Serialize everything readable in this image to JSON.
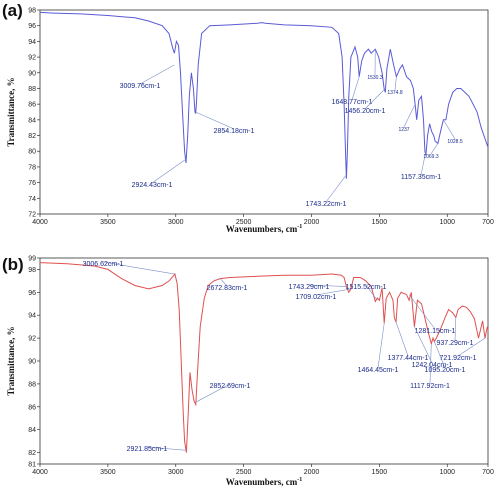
{
  "chart_data": [
    {
      "type": "line",
      "panel_label": "(a)",
      "xlabel": "Wavenumbers, cm",
      "xlabel_sup": "-1",
      "ylabel": "Transmittance, %",
      "xlim": [
        4000,
        700
      ],
      "ylim": [
        72,
        98
      ],
      "xticks": [
        4000,
        3500,
        3000,
        2500,
        2000,
        1500,
        1000,
        700
      ],
      "yticks": [
        72,
        74,
        76,
        78,
        80,
        82,
        84,
        86,
        88,
        90,
        92,
        94,
        96,
        98
      ],
      "color": "#5a5ad8",
      "series": [
        {
          "x": [
            4000,
            3900,
            3700,
            3500,
            3300,
            3200,
            3100,
            3050,
            3020,
            3009.76,
            2995,
            2980,
            2965,
            2950,
            2935,
            2924.43,
            2912,
            2900,
            2885,
            2870,
            2858,
            2854.18,
            2848,
            2835,
            2810,
            2750,
            2600,
            2400,
            2365,
            2340,
            2200,
            2000,
            1850,
            1800,
            1775,
            1760,
            1750,
            1743.22,
            1736,
            1725,
            1710,
            1680,
            1660,
            1648.77,
            1630,
            1610,
            1580,
            1560,
            1530.3,
            1505,
            1480,
            1465,
            1456.2,
            1445,
            1420,
            1395,
            1374.8,
            1350,
            1330,
            1300,
            1270,
            1250,
            1237,
            1225,
            1210,
            1190,
            1175,
            1165,
            1157.35,
            1145,
            1130,
            1115,
            1100,
            1090,
            1069.3,
            1050,
            1028.5,
            1010,
            990,
            960,
            930,
            900,
            870,
            840,
            810,
            780,
            750,
            720,
            700
          ],
          "y": [
            97.7,
            97.6,
            97.5,
            97.3,
            97.0,
            96.6,
            96.0,
            95.0,
            93.0,
            92.5,
            94.0,
            93.5,
            90.0,
            85.0,
            80.0,
            78.5,
            82.0,
            87.0,
            90.0,
            88.0,
            85.0,
            84.8,
            86.0,
            91.0,
            95.0,
            96.0,
            96.1,
            96.3,
            96.4,
            96.3,
            96.1,
            96.0,
            95.8,
            95.0,
            92.0,
            86.0,
            80.0,
            76.5,
            80.0,
            87.0,
            92.0,
            93.3,
            92.0,
            89.5,
            91.5,
            92.5,
            93.0,
            92.5,
            93.0,
            92.0,
            90.0,
            88.0,
            87.5,
            90.5,
            93.0,
            91.0,
            89.5,
            90.5,
            91.0,
            89.5,
            89.0,
            88.0,
            86.0,
            84.0,
            86.5,
            87.0,
            84.0,
            80.0,
            79.5,
            82.0,
            83.5,
            82.5,
            82.0,
            81.3,
            81.0,
            82.5,
            84.0,
            84.0,
            86.0,
            87.5,
            88.0,
            88.0,
            87.5,
            87.0,
            86.0,
            85.0,
            83.0,
            81.5,
            80.5
          ]
        }
      ],
      "annotations": [
        {
          "text": "3009.76cm-1",
          "size": "normal"
        },
        {
          "text": "2924.43cm-1",
          "size": "normal"
        },
        {
          "text": "2854.18cm-1",
          "size": "normal"
        },
        {
          "text": "1743.22cm-1",
          "size": "normal"
        },
        {
          "text": "1648.77cm-1",
          "size": "normal"
        },
        {
          "text": "1456.20cm-1",
          "size": "normal"
        },
        {
          "text": "1530.3",
          "size": "small"
        },
        {
          "text": "1374.8",
          "size": "small"
        },
        {
          "text": "1237",
          "size": "small"
        },
        {
          "text": "1157.35cm-1",
          "size": "normal"
        },
        {
          "text": "1069.3",
          "size": "small"
        },
        {
          "text": "1028.5",
          "size": "small"
        }
      ]
    },
    {
      "type": "line",
      "panel_label": "(b)",
      "xlabel": "Wavenumbers, cm",
      "xlabel_sup": "-1",
      "ylabel": "Transmittance, %",
      "xlim": [
        4000,
        700
      ],
      "ylim": [
        81,
        99
      ],
      "xticks": [
        4000,
        3500,
        3000,
        2500,
        2000,
        1500,
        1000,
        700
      ],
      "yticks": [
        81,
        82,
        84,
        86,
        88,
        90,
        92,
        94,
        96,
        98,
        99
      ],
      "color": "#e05050",
      "series": [
        {
          "x": [
            4000,
            3800,
            3600,
            3500,
            3400,
            3300,
            3200,
            3100,
            3050,
            3020,
            3006.62,
            2990,
            2975,
            2960,
            2945,
            2935,
            2921.85,
            2910,
            2895,
            2880,
            2865,
            2852.69,
            2840,
            2820,
            2790,
            2760,
            2720,
            2672.83,
            2600,
            2400,
            2200,
            2000,
            1850,
            1780,
            1760,
            1743.29,
            1725,
            1709.02,
            1690,
            1640,
            1600,
            1560,
            1530,
            1515.52,
            1500,
            1480,
            1464.45,
            1450,
            1425,
            1400,
            1390,
            1377.44,
            1365,
            1340,
            1300,
            1281.15,
            1265,
            1242.04,
            1220,
            1190,
            1160,
            1140,
            1117.92,
            1105,
            1095.2,
            1080,
            1050,
            1020,
            990,
            960,
            937.29,
            920,
            890,
            860,
            830,
            800,
            770,
            740,
            721.92,
            705,
            700
          ],
          "y": [
            98.6,
            98.5,
            98.3,
            98.0,
            97.2,
            96.6,
            96.3,
            96.6,
            97.0,
            97.4,
            97.6,
            96.8,
            94.5,
            90.0,
            85.5,
            83.0,
            82.0,
            85.0,
            89.0,
            87.5,
            86.5,
            86.2,
            89.0,
            93.0,
            95.5,
            96.6,
            97.0,
            97.2,
            97.3,
            97.4,
            97.5,
            97.5,
            97.6,
            97.5,
            97.3,
            96.5,
            96.0,
            96.3,
            97.3,
            97.3,
            97.0,
            96.5,
            95.2,
            95.5,
            95.3,
            96.4,
            93.3,
            95.5,
            96.0,
            95.3,
            93.8,
            93.4,
            95.5,
            96.0,
            95.8,
            95.3,
            96.0,
            93.0,
            95.3,
            95.0,
            93.5,
            92.5,
            91.5,
            92.0,
            91.7,
            92.0,
            92.8,
            93.7,
            94.5,
            94.2,
            93.8,
            94.5,
            94.8,
            94.7,
            94.3,
            93.7,
            92.0,
            93.5,
            92.0,
            93.0,
            92.7
          ]
        }
      ],
      "annotations": [
        {
          "text": "3006.62cm-1",
          "size": "normal"
        },
        {
          "text": "2672.83cm-1",
          "size": "normal"
        },
        {
          "text": "2921.85cm-1",
          "size": "normal"
        },
        {
          "text": "2852.69cm-1",
          "size": "normal"
        },
        {
          "text": "1743.29cm-1",
          "size": "normal"
        },
        {
          "text": "1709.02cm-1",
          "size": "normal"
        },
        {
          "text": "1515.52cm-1",
          "size": "normal"
        },
        {
          "text": "1464.45cm-1",
          "size": "normal"
        },
        {
          "text": "1377.44cm-1",
          "size": "normal"
        },
        {
          "text": "1281.15cm-1",
          "size": "normal"
        },
        {
          "text": "1242.04cm-1",
          "size": "normal"
        },
        {
          "text": "1117.92cm-1",
          "size": "normal"
        },
        {
          "text": "1095.20cm-1",
          "size": "normal"
        },
        {
          "text": "937.29cm-1",
          "size": "normal"
        },
        {
          "text": "721.92cm-1",
          "size": "normal"
        }
      ]
    }
  ]
}
